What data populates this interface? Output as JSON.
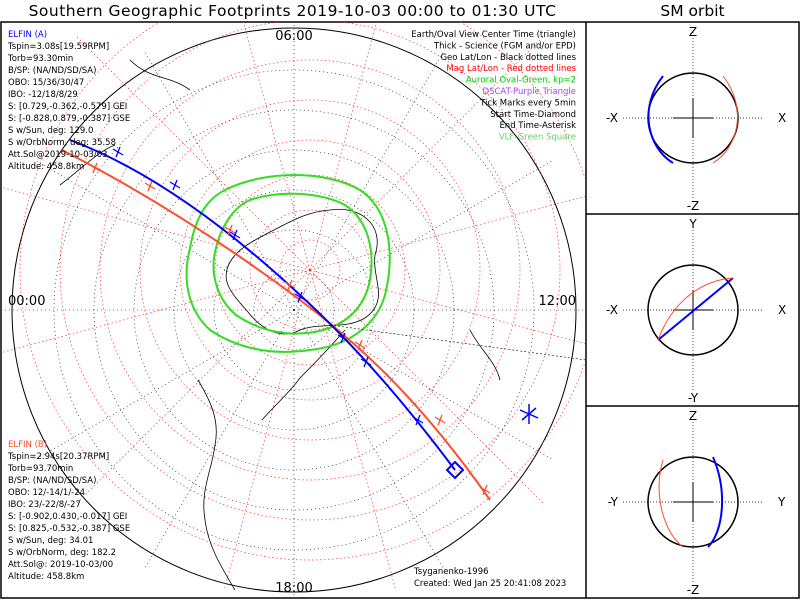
{
  "title": "Southern Geographic Footprints 2019-10-03 00:00 to 01:30 UTC",
  "sm_title": "SM orbit",
  "hour_labels": {
    "top": "06:00",
    "left": "00:00",
    "right": "12:00",
    "bottom": "18:00"
  },
  "elfin_a": {
    "header": "ELFIN (A)",
    "lines": [
      "Tspin=3.08s[19.59RPM]",
      "Torb=93.30min",
      "B/SP: (NA/ND/SD/SA)",
      "OBO: 15/36/30/47",
      "IBO: -12/18/8/29",
      "S: [0.729,-0.362,-0.579] GEI",
      "S: [-0.828,0.879,-0.387] GSE",
      "S w/Sun, deg: 129.0",
      "S w/OrbNorm, deg: 35.58",
      "Att.Sol@2019-10-03/03",
      "Altitude: 458.8km"
    ],
    "color": "#0000ff"
  },
  "elfin_b": {
    "header": "ELFIN (B)",
    "lines": [
      "Tspin=2.94s[20.37RPM]",
      "Torb=93.70min",
      "B/SP: (NA/ND/SD/SA)",
      "OBO: 12/-14/1/-24",
      "IBO: 23/-22/8/-27",
      "S: [-0.902,0.430,-0.017] GEI",
      "S: [0.825,-0.532,-0.387] GSE",
      "S w/Sun, deg: 34.01",
      "S w/OrbNorm, deg: 182.2",
      "Att.Sol@: 2019-10-03/00",
      "Altitude: 458.8km"
    ],
    "color": "#ff4c2c"
  },
  "legend": [
    {
      "text": "Earth/Oval View Center Time (triangle)",
      "color": "#000000"
    },
    {
      "text": "Thick - Science (FGM and/or EPD)",
      "color": "#000000"
    },
    {
      "text": "Geo Lat/Lon - Black dotted lines",
      "color": "#000000"
    },
    {
      "text": "Mag Lat/Lon - Red dotted lines",
      "color": "#ff0000"
    },
    {
      "text": "Auroral Oval-Green, kp=2",
      "color": "#00cc00"
    },
    {
      "text": "DSCAT-Purple Triangle",
      "color": "#b040ff"
    },
    {
      "text": "Tick Marks every 5min",
      "color": "#000000"
    },
    {
      "text": "Start Time-Diamond",
      "color": "#000000"
    },
    {
      "text": "End Time-Asterisk",
      "color": "#000000"
    },
    {
      "text": "VLF-Green Square",
      "color": "#66cc66"
    }
  ],
  "credit": {
    "model": "Tsyganenko-1996",
    "created": "Created: Wed Jan 25 20:41:08 2023"
  },
  "sm_panels": [
    {
      "top": "Z",
      "bottom": "-Z",
      "left": "-X",
      "right": "X"
    },
    {
      "top": "Y",
      "bottom": "-Y",
      "left": "-X",
      "right": "X"
    },
    {
      "top": "Z",
      "bottom": "-Z",
      "left": "-Y",
      "right": "Y"
    }
  ],
  "colors": {
    "elfin_a": "#0000ff",
    "elfin_b": "#ff4c2c",
    "mag_grid": "#ff3030",
    "auroral_oval": "#33dd22",
    "geo_grid": "#000000",
    "sm_return": "#aaaaaa"
  }
}
